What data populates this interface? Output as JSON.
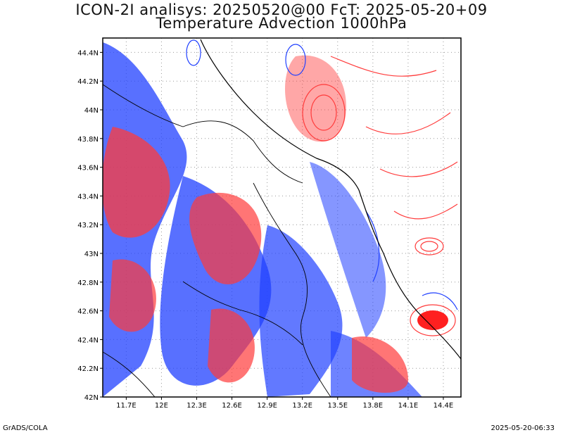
{
  "title_line1": "ICON-2I analisys: 20250520@00 FcT: 2025-05-20+09",
  "title_line2": "Temperature Advection 1000hPa",
  "footer_left": "GrADS/COLA",
  "footer_right": "2025-05-20-06:33",
  "map": {
    "lon_range": [
      11.5,
      14.55
    ],
    "lat_range": [
      42.0,
      44.5
    ],
    "lon_ticks": [
      "11.7E",
      "12E",
      "12.3E",
      "12.6E",
      "12.9E",
      "13.2E",
      "13.5E",
      "13.8E",
      "14.1E",
      "14.4E"
    ],
    "lat_ticks": [
      "42N",
      "42.2N",
      "42.4N",
      "42.6N",
      "42.8N",
      "43N",
      "43.2N",
      "43.4N",
      "43.6N",
      "43.8N",
      "44N",
      "44.2N",
      "44.4N"
    ],
    "grid": "dotted",
    "colors": {
      "warm_advection": "#ff3b3b",
      "cold_advection": "#2040ff",
      "coastline": "#000000",
      "frame": "#000000"
    }
  }
}
